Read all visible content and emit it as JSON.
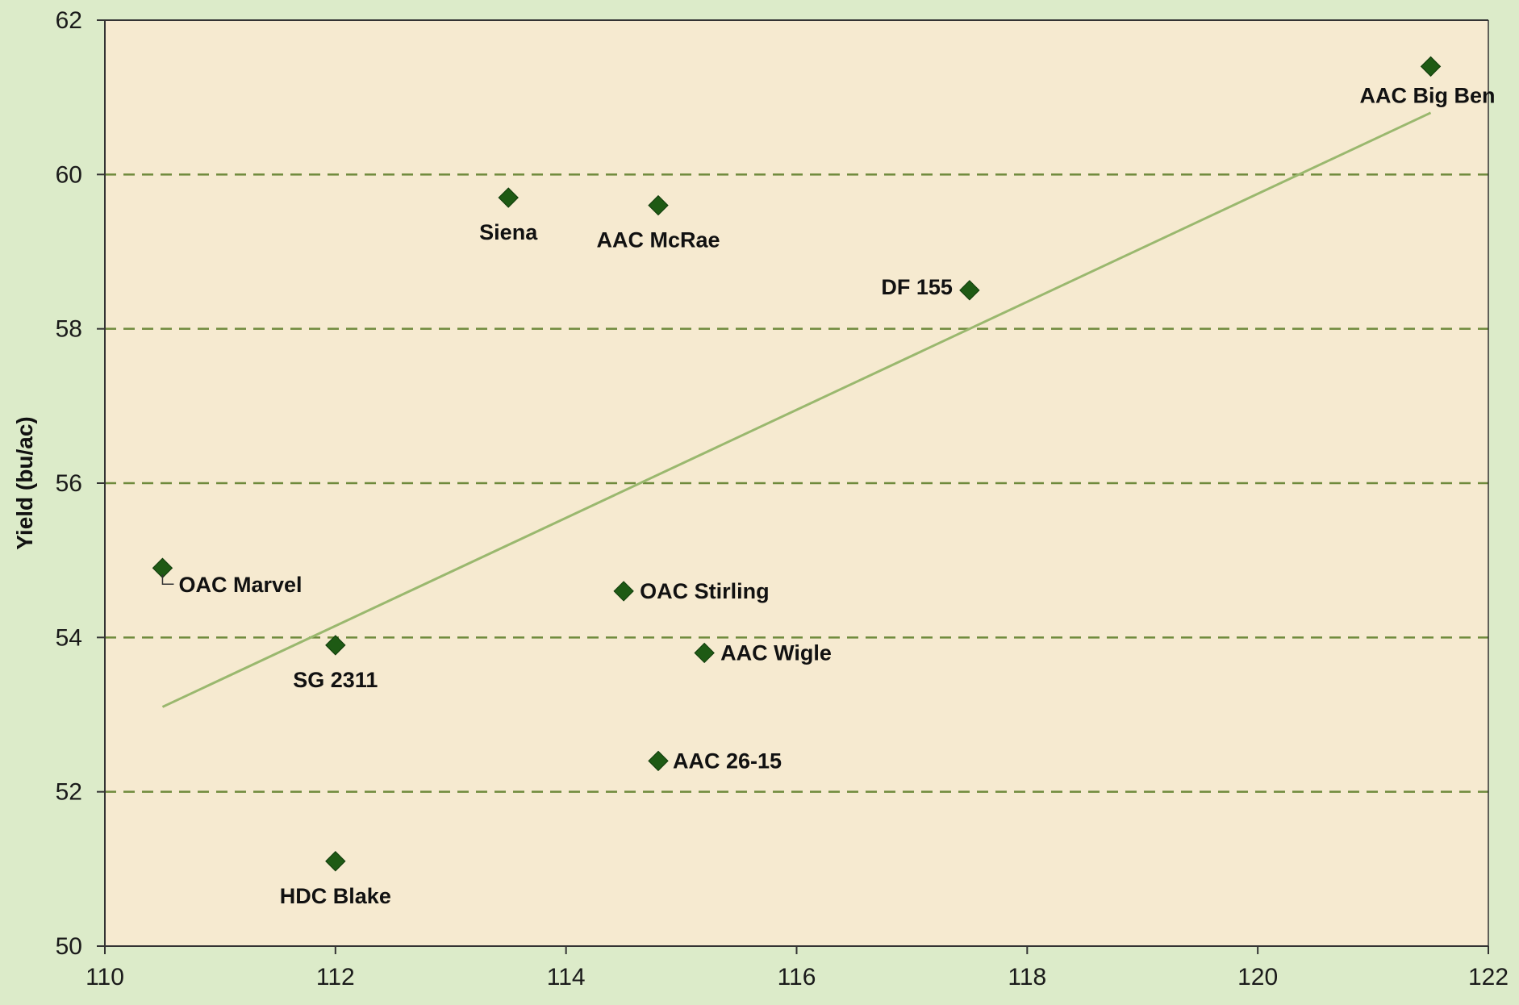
{
  "chart_data": {
    "type": "scatter",
    "title": "",
    "xlabel": "",
    "ylabel": "Yield (bu/ac)",
    "xlim": [
      110,
      122
    ],
    "ylim": [
      50,
      62
    ],
    "x_ticks": [
      "110",
      "112",
      "114",
      "116",
      "118",
      "120",
      "122"
    ],
    "y_ticks": [
      "50",
      "52",
      "54",
      "56",
      "58",
      "60",
      "62"
    ],
    "grid": "horizontal dashed",
    "legend": "none",
    "points": [
      {
        "label": "OAC Marvel",
        "x": 110.5,
        "y": 54.9
      },
      {
        "label": "SG 2311",
        "x": 112.0,
        "y": 53.9
      },
      {
        "label": "HDC Blake",
        "x": 112.0,
        "y": 51.1
      },
      {
        "label": "Siena",
        "x": 113.5,
        "y": 59.7
      },
      {
        "label": "OAC Stirling",
        "x": 114.5,
        "y": 54.6
      },
      {
        "label": "AAC McRae",
        "x": 114.8,
        "y": 59.6
      },
      {
        "label": "AAC 26-15",
        "x": 114.8,
        "y": 52.4
      },
      {
        "label": "AAC Wigle",
        "x": 115.2,
        "y": 53.8
      },
      {
        "label": "DF 155",
        "x": 117.5,
        "y": 58.5
      },
      {
        "label": "AAC Big Ben",
        "x": 121.5,
        "y": 61.4
      }
    ],
    "trendline": {
      "x": [
        110.5,
        121.5
      ],
      "y": [
        53.1,
        60.8
      ]
    },
    "colors": {
      "marker": "#1e5a14",
      "trendline": "#9ab86e",
      "gridline": "#6f8a3c",
      "plot_background": "#f6ead0",
      "page_background": "#dcebc9"
    }
  }
}
